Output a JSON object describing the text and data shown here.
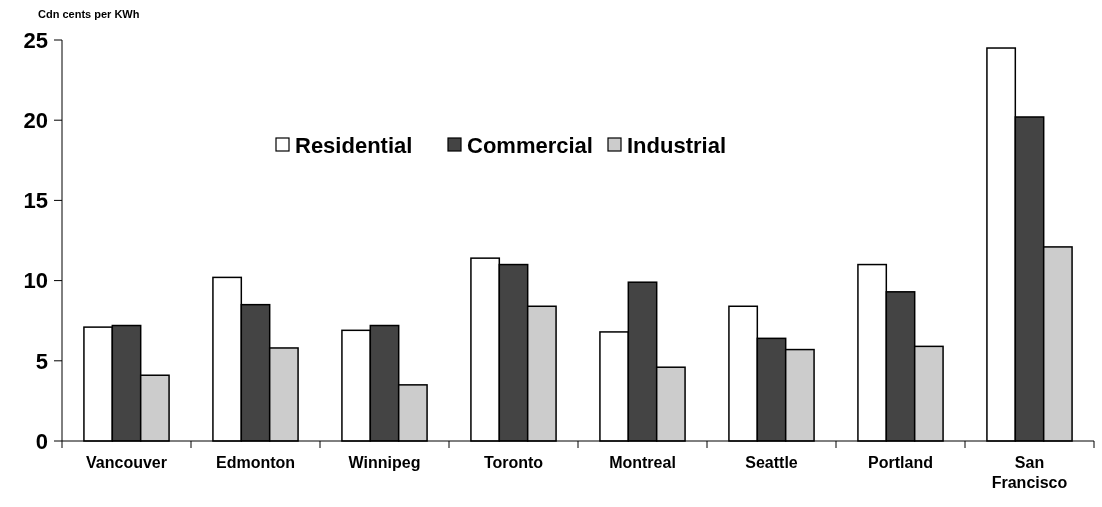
{
  "chart_data": {
    "type": "bar",
    "ylabel": "Cdn cents per KWh",
    "categories": [
      "Vancouver",
      "Edmonton",
      "Winnipeg",
      "Toronto",
      "Montreal",
      "Seattle",
      "Portland",
      "San Francisco"
    ],
    "series": [
      {
        "name": "Residential",
        "color": "#ffffff",
        "values": [
          7.1,
          10.2,
          6.9,
          11.4,
          6.8,
          8.4,
          11.0,
          24.5
        ]
      },
      {
        "name": "Commercial",
        "color": "#444444",
        "values": [
          7.2,
          8.5,
          7.2,
          11.0,
          9.9,
          6.4,
          9.3,
          20.2
        ]
      },
      {
        "name": "Industrial",
        "color": "#cccccc",
        "values": [
          4.1,
          5.8,
          3.5,
          8.4,
          4.6,
          5.7,
          5.9,
          12.1
        ]
      }
    ],
    "ylim": [
      0,
      25
    ],
    "yticks": [
      0,
      5,
      10,
      15,
      20,
      25
    ],
    "grid": false,
    "legend": "top"
  }
}
